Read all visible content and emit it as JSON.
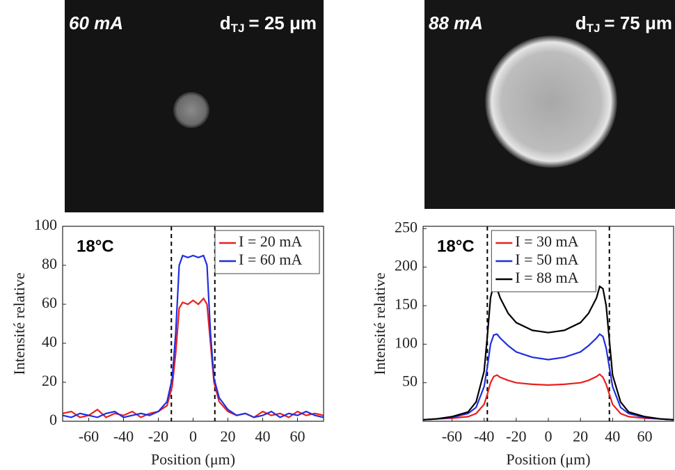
{
  "images": [
    {
      "current": "60 mA",
      "symbol": "d",
      "subscript": "TJ",
      "size": "= 25 μm"
    },
    {
      "current": "88 mA",
      "symbol": "d",
      "subscript": "TJ",
      "size": "= 75 μm"
    }
  ],
  "chart_data": [
    {
      "type": "line",
      "annotation": "18°C",
      "xlabel": "Position (μm)",
      "ylabel": "Intensité relative",
      "xlim": [
        -75,
        75
      ],
      "ylim": [
        0,
        100
      ],
      "xticks": [
        -60,
        -40,
        -20,
        0,
        20,
        40,
        60
      ],
      "yticks": [
        0,
        20,
        40,
        60,
        80,
        100
      ],
      "vlines": [
        -12.5,
        12.5
      ],
      "legend": "upper right",
      "x": [
        -75,
        -70,
        -65,
        -60,
        -55,
        -50,
        -45,
        -40,
        -35,
        -30,
        -25,
        -20,
        -15,
        -12,
        -10,
        -8,
        -6,
        -3,
        0,
        3,
        6,
        8,
        10,
        12,
        15,
        20,
        25,
        30,
        35,
        40,
        45,
        50,
        55,
        60,
        65,
        70,
        75
      ],
      "series": [
        {
          "name": "I = 20 mA",
          "color": "#e8201f",
          "values": [
            4,
            5,
            2,
            3,
            6,
            2,
            4,
            3,
            5,
            2,
            4,
            5,
            8,
            18,
            35,
            58,
            61,
            60,
            62,
            60,
            63,
            60,
            40,
            20,
            10,
            5,
            3,
            4,
            2,
            5,
            3,
            4,
            2,
            5,
            3,
            4,
            3
          ]
        },
        {
          "name": "I = 60 mA",
          "color": "#1f2ee0",
          "values": [
            3,
            2,
            4,
            3,
            2,
            4,
            5,
            2,
            3,
            4,
            3,
            5,
            10,
            22,
            45,
            80,
            85,
            84,
            85,
            84,
            85,
            80,
            45,
            22,
            12,
            6,
            3,
            4,
            2,
            3,
            5,
            2,
            4,
            3,
            5,
            3,
            2
          ]
        }
      ]
    },
    {
      "type": "line",
      "annotation": "18°C",
      "xlabel": "Position (μm)",
      "ylabel": "Intensité relative",
      "xlim": [
        -78,
        78
      ],
      "ylim": [
        0,
        253
      ],
      "xticks": [
        -60,
        -40,
        -20,
        0,
        20,
        40,
        60
      ],
      "yticks": [
        50,
        100,
        150,
        200,
        250
      ],
      "vlines": [
        -38,
        38
      ],
      "legend": "upper left",
      "x": [
        -78,
        -70,
        -60,
        -50,
        -45,
        -40,
        -38,
        -36,
        -34,
        -32,
        -30,
        -25,
        -20,
        -10,
        0,
        10,
        20,
        25,
        30,
        32,
        34,
        36,
        38,
        40,
        45,
        50,
        60,
        70,
        78
      ],
      "series": [
        {
          "name": "I = 30 mA",
          "color": "#e8201f",
          "values": [
            2,
            3,
            4,
            6,
            10,
            22,
            35,
            50,
            58,
            60,
            57,
            53,
            50,
            48,
            47,
            48,
            50,
            53,
            58,
            61,
            57,
            48,
            35,
            22,
            10,
            6,
            4,
            3,
            2
          ]
        },
        {
          "name": "I = 50 mA",
          "color": "#1f2ee0",
          "values": [
            2,
            3,
            5,
            10,
            18,
            45,
            70,
            100,
            112,
            113,
            108,
            98,
            90,
            83,
            80,
            83,
            90,
            98,
            108,
            113,
            110,
            95,
            70,
            45,
            18,
            10,
            5,
            3,
            2
          ]
        },
        {
          "name": "I = 88 mA",
          "color": "#000000",
          "values": [
            2,
            3,
            6,
            12,
            25,
            65,
            110,
            160,
            178,
            172,
            160,
            140,
            128,
            118,
            115,
            118,
            128,
            140,
            160,
            175,
            172,
            150,
            105,
            60,
            25,
            12,
            6,
            3,
            2
          ]
        }
      ]
    }
  ]
}
